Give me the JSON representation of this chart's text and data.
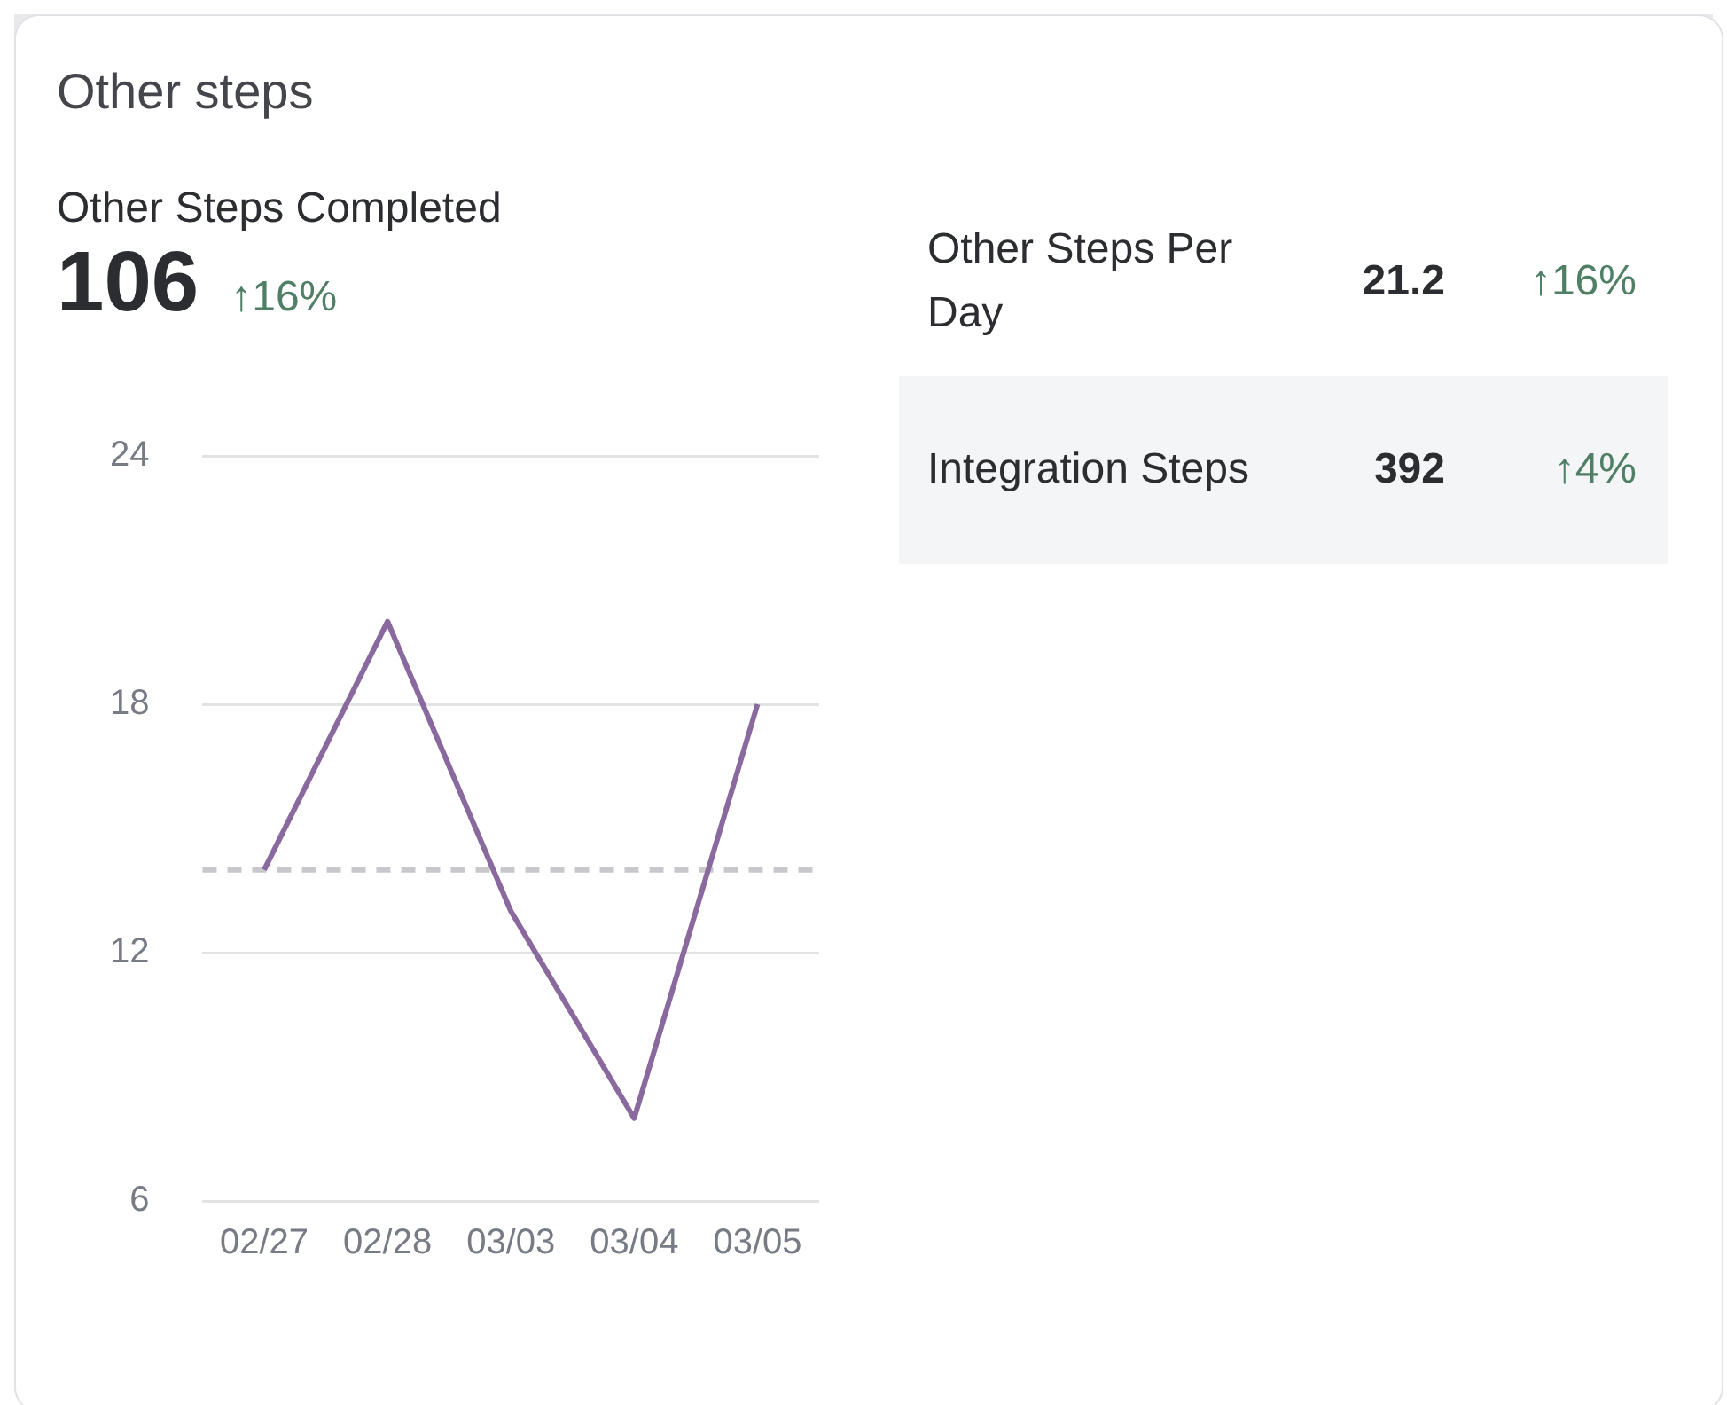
{
  "chart_data": [
    {
      "type": "line",
      "title": "Other steps",
      "subtitle": "Other Steps Completed",
      "annotations": [
        "106",
        "↑16%"
      ],
      "categories": [
        "02/27",
        "02/28",
        "03/03",
        "03/04",
        "03/05"
      ],
      "series": [
        {
          "color": "#8a6a9e",
          "values": [
            14,
            20,
            13,
            8,
            18
          ]
        }
      ],
      "ylim": [
        6,
        24
      ],
      "yticks": [
        6,
        12,
        18,
        24
      ],
      "grid": "y",
      "marker": "none",
      "line_style": "solid",
      "ref_lines": [
        {
          "axis": "y",
          "value": 14,
          "color": "#c8c8cc",
          "line_style": "dashed"
        }
      ]
    },
    {
      "type": "other",
      "annotations": [
        "Other Steps Per Day",
        "21.2",
        "↑16%",
        "Integration Steps",
        "392",
        "↑4%"
      ]
    }
  ]
}
